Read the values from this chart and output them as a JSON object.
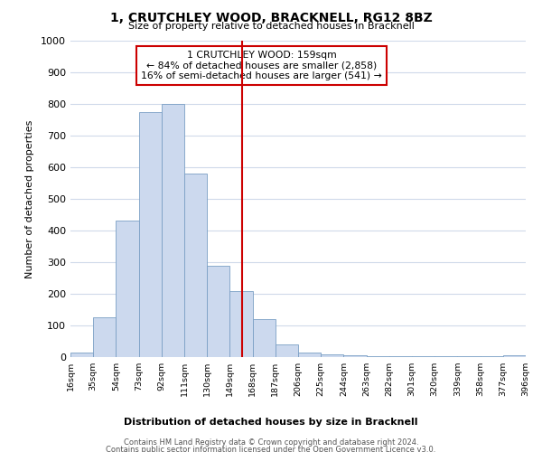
{
  "title": "1, CRUTCHLEY WOOD, BRACKNELL, RG12 8BZ",
  "subtitle": "Size of property relative to detached houses in Bracknell",
  "xlabel": "Distribution of detached houses by size in Bracknell",
  "ylabel": "Number of detached properties",
  "bar_color": "#ccd9ee",
  "bar_edge_color": "#7a9fc4",
  "vline_x": 159,
  "vline_color": "#cc0000",
  "annotation_line1": "1 CRUTCHLEY WOOD: 159sqm",
  "annotation_line2": "← 84% of detached houses are smaller (2,858)",
  "annotation_line3": "16% of semi-detached houses are larger (541) →",
  "annotation_box_edge": "#cc0000",
  "bins": [
    16,
    35,
    54,
    73,
    92,
    111,
    130,
    149,
    168,
    187,
    206,
    225,
    244,
    263,
    282,
    301,
    320,
    339,
    358,
    377,
    396
  ],
  "bin_labels": [
    "16sqm",
    "35sqm",
    "54sqm",
    "73sqm",
    "92sqm",
    "111sqm",
    "130sqm",
    "149sqm",
    "168sqm",
    "187sqm",
    "206sqm",
    "225sqm",
    "244sqm",
    "263sqm",
    "282sqm",
    "301sqm",
    "320sqm",
    "339sqm",
    "358sqm",
    "377sqm",
    "396sqm"
  ],
  "heights": [
    15,
    125,
    430,
    775,
    800,
    580,
    290,
    210,
    120,
    40,
    15,
    10,
    5,
    3,
    2,
    2,
    2,
    2,
    2,
    5
  ],
  "ylim": [
    0,
    1000
  ],
  "yticks": [
    0,
    100,
    200,
    300,
    400,
    500,
    600,
    700,
    800,
    900,
    1000
  ],
  "footer_line1": "Contains HM Land Registry data © Crown copyright and database right 2024.",
  "footer_line2": "Contains public sector information licensed under the Open Government Licence v3.0.",
  "bg_color": "#ffffff",
  "grid_color": "#d0daea"
}
